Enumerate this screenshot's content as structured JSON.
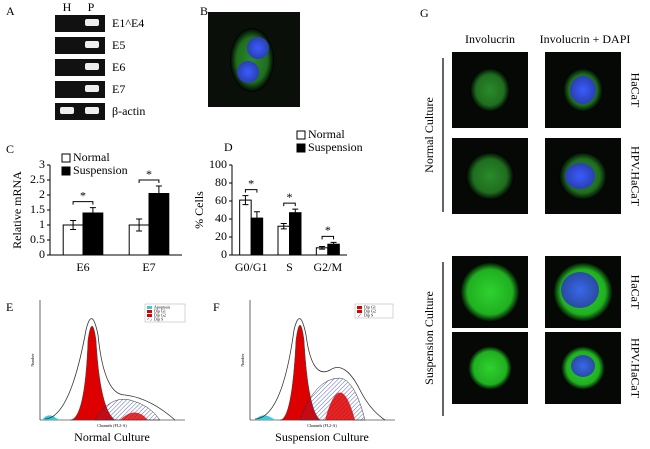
{
  "panel_labels": [
    "A",
    "B",
    "C",
    "D",
    "E",
    "F",
    "G"
  ],
  "gel": {
    "lanes": [
      "H",
      "P"
    ],
    "bands": [
      "E1^E4",
      "E5",
      "E6",
      "E7",
      "β-actin"
    ]
  },
  "chart_data": [
    {
      "type": "bar",
      "ylabel": "Relative mRNA",
      "categories": [
        "E6",
        "E7"
      ],
      "series": [
        {
          "name": "Normal",
          "color": "#ffffff",
          "values": [
            1,
            1
          ],
          "errors": [
            0.15,
            0.2
          ]
        },
        {
          "name": "Suspension",
          "color": "#000000",
          "values": [
            1.4,
            2.05
          ],
          "errors": [
            0.18,
            0.25
          ]
        }
      ],
      "significance": [
        "*",
        "*"
      ],
      "ylim": [
        0,
        3
      ],
      "yticks": [
        0,
        0.5,
        1,
        1.5,
        2,
        2.5,
        3
      ],
      "legend": "top-left"
    },
    {
      "type": "bar",
      "ylabel": "% Cells",
      "categories": [
        "G0/G1",
        "S",
        "G2/M"
      ],
      "series": [
        {
          "name": "Normal",
          "color": "#ffffff",
          "values": [
            61,
            32,
            8
          ],
          "errors": [
            5,
            3,
            1.5
          ]
        },
        {
          "name": "Suspension",
          "color": "#000000",
          "values": [
            41,
            47,
            12
          ],
          "errors": [
            7,
            4,
            2
          ]
        }
      ],
      "significance": [
        "*",
        "*",
        "*"
      ],
      "ylim": [
        0,
        100
      ],
      "yticks": [
        0,
        20,
        40,
        60,
        80,
        100
      ],
      "legend": "top-right"
    }
  ],
  "flow": [
    {
      "caption": "Normal Culture",
      "xlabel": "Channels (FL2-A)",
      "ylabel": "Number",
      "legend": [
        "Apoptosis",
        "Dip G1",
        "Dip G2",
        "Dip S"
      ]
    },
    {
      "caption": "Suspension Culture",
      "xlabel": "Channels (FL2-A)",
      "ylabel": "Number",
      "legend": [
        "Dip G1",
        "Dip G2",
        "Dip S"
      ]
    }
  ],
  "microscopy": {
    "columns": [
      "Involucrin",
      "Involucrin + DAPI"
    ],
    "groups": [
      "Normal Culture",
      "Suspension Culture"
    ],
    "rows": [
      "HaCaT",
      "HPV.HaCaT",
      "HaCaT",
      "HPV.HaCaT"
    ]
  }
}
